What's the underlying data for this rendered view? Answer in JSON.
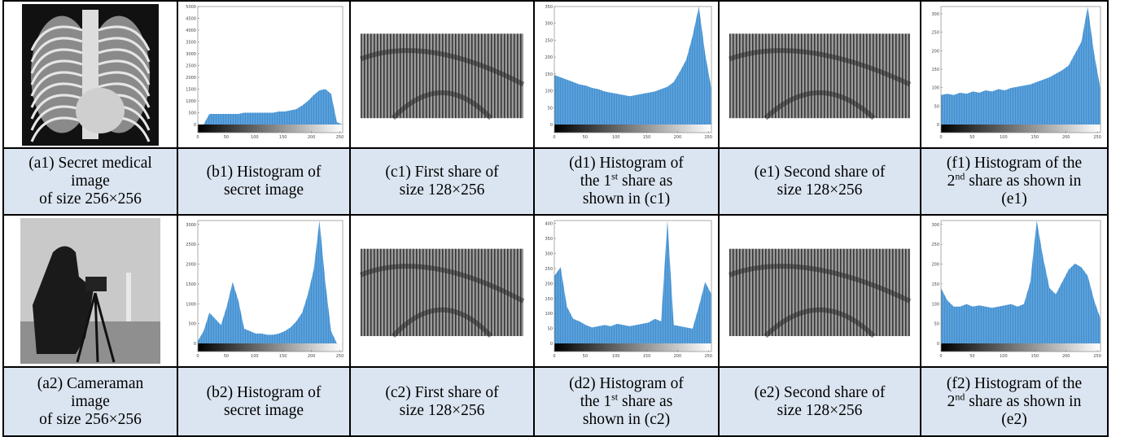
{
  "rows": [
    {
      "panels": [
        {
          "kind": "xray",
          "caption": [
            "(a1) Secret medical",
            "image",
            "of size 256×256"
          ]
        },
        {
          "kind": "hist",
          "xlim": [
            0,
            255
          ],
          "xticks": [
            0,
            50,
            100,
            150,
            200,
            250
          ],
          "ylim": [
            0,
            5000
          ],
          "yticks": [
            0,
            500,
            1000,
            1500,
            2000,
            2500,
            3000,
            3500,
            4000,
            4500,
            5000
          ],
          "caption": [
            "(b1) Histogram of",
            "secret image"
          ]
        },
        {
          "kind": "share",
          "caption": [
            "(c1) First share of",
            "size 128×256"
          ]
        },
        {
          "kind": "hist",
          "xlim": [
            0,
            255
          ],
          "xticks": [
            0,
            50,
            100,
            150,
            200,
            250
          ],
          "ylim": [
            0,
            350
          ],
          "yticks": [
            0,
            50,
            100,
            150,
            200,
            250,
            300,
            350
          ],
          "caption": [
            "(d1) Histogram of",
            {
              "text": "the 1",
              "sup": "st",
              "after": " share as"
            },
            "shown in (c1)"
          ]
        },
        {
          "kind": "share",
          "caption": [
            "(e1) Second share of",
            "size 128×256"
          ]
        },
        {
          "kind": "hist",
          "xlim": [
            0,
            255
          ],
          "xticks": [
            0,
            50,
            100,
            150,
            200,
            250
          ],
          "ylim": [
            0,
            320
          ],
          "yticks": [
            0,
            50,
            100,
            150,
            200,
            250,
            300
          ],
          "caption": [
            "(f1) Histogram of the",
            {
              "text": "2",
              "sup": "nd",
              "after": " share as shown in"
            },
            "(e1)"
          ]
        }
      ]
    },
    {
      "panels": [
        {
          "kind": "camera",
          "caption": [
            "(a2) Cameraman",
            "image",
            "of size 256×256"
          ]
        },
        {
          "kind": "hist",
          "xlim": [
            0,
            255
          ],
          "xticks": [
            0,
            50,
            100,
            150,
            200,
            250
          ],
          "ylim": [
            0,
            3100
          ],
          "yticks": [
            0,
            500,
            1000,
            1500,
            2000,
            2500,
            3000
          ],
          "caption": [
            "(b2) Histogram of",
            "secret image"
          ]
        },
        {
          "kind": "share",
          "caption": [
            "(c2) First share of",
            "size 128×256"
          ]
        },
        {
          "kind": "hist",
          "xlim": [
            0,
            255
          ],
          "xticks": [
            0,
            50,
            100,
            150,
            200,
            250
          ],
          "ylim": [
            0,
            410
          ],
          "yticks": [
            0,
            50,
            100,
            150,
            200,
            250,
            300,
            350,
            400
          ],
          "caption": [
            "(d2) Histogram of",
            {
              "text": "the 1",
              "sup": "st",
              "after": " share as"
            },
            "shown in (c2)"
          ]
        },
        {
          "kind": "share",
          "caption": [
            "(e2) Second share of",
            "size 128×256"
          ]
        },
        {
          "kind": "hist",
          "xlim": [
            0,
            255
          ],
          "xticks": [
            0,
            50,
            100,
            150,
            200,
            250
          ],
          "ylim": [
            0,
            310
          ],
          "yticks": [
            0,
            50,
            100,
            150,
            200,
            250,
            300
          ],
          "caption": [
            "(f2) Histogram of the",
            {
              "text": "2",
              "sup": "nd",
              "after": " share as shown in"
            },
            "(e2)"
          ]
        }
      ]
    }
  ]
}
